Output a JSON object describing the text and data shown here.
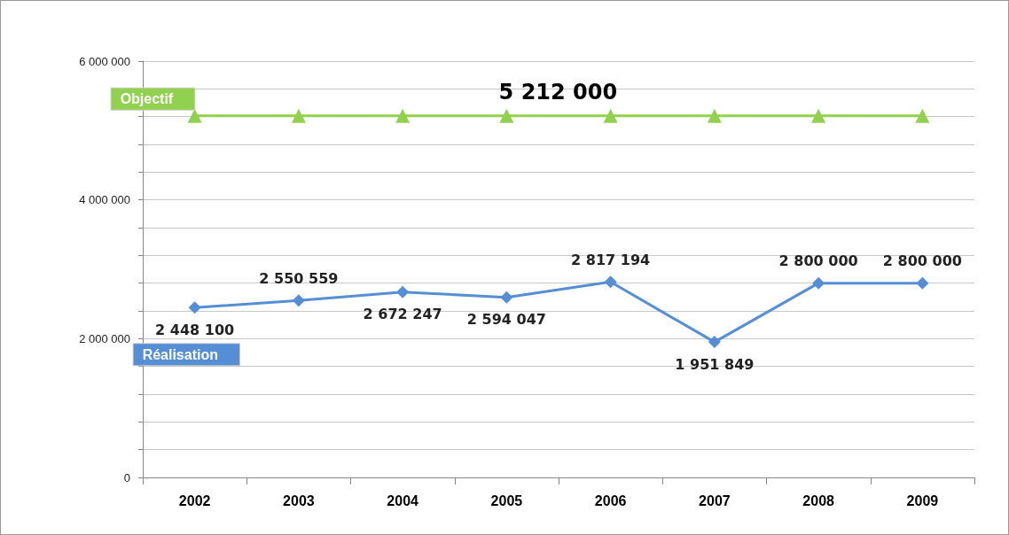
{
  "chart_data": {
    "type": "line",
    "categories": [
      "2002",
      "2003",
      "2004",
      "2005",
      "2006",
      "2007",
      "2008",
      "2009"
    ],
    "series": [
      {
        "name": "Objectif",
        "color": "#92d050",
        "marker": "triangle",
        "values": [
          5212000,
          5212000,
          5212000,
          5212000,
          5212000,
          5212000,
          5212000,
          5212000
        ],
        "value_labels": [
          null,
          null,
          null,
          "5 212 000",
          null,
          null,
          null,
          null
        ]
      },
      {
        "name": "Réalisation",
        "color": "#558ed5",
        "marker": "diamond",
        "values": [
          2448100,
          2550559,
          2672247,
          2594047,
          2817194,
          1951849,
          2800000,
          2800000
        ],
        "value_labels": [
          "2 448 100",
          "2 550 559",
          "2 672 247",
          "2 594 047",
          "2 817 194",
          "1 951 849",
          "2 800 000",
          "2 800 000"
        ]
      }
    ],
    "ylim": [
      0,
      6000000
    ],
    "yticks": [
      {
        "value": 0,
        "label": "0"
      },
      {
        "value": 400000,
        "label": null
      },
      {
        "value": 800000,
        "label": null
      },
      {
        "value": 1200000,
        "label": null
      },
      {
        "value": 1600000,
        "label": null
      },
      {
        "value": 2000000,
        "label": "2 000 000"
      },
      {
        "value": 2400000,
        "label": null
      },
      {
        "value": 2800000,
        "label": null
      },
      {
        "value": 3200000,
        "label": null
      },
      {
        "value": 3600000,
        "label": null
      },
      {
        "value": 4000000,
        "label": "4 000 000"
      },
      {
        "value": 4400000,
        "label": null
      },
      {
        "value": 4800000,
        "label": null
      },
      {
        "value": 5200000,
        "label": null
      },
      {
        "value": 5600000,
        "label": null
      },
      {
        "value": 6000000,
        "label": "6 000 000"
      }
    ],
    "grid": "y",
    "legend": false,
    "line_style": "solid"
  }
}
